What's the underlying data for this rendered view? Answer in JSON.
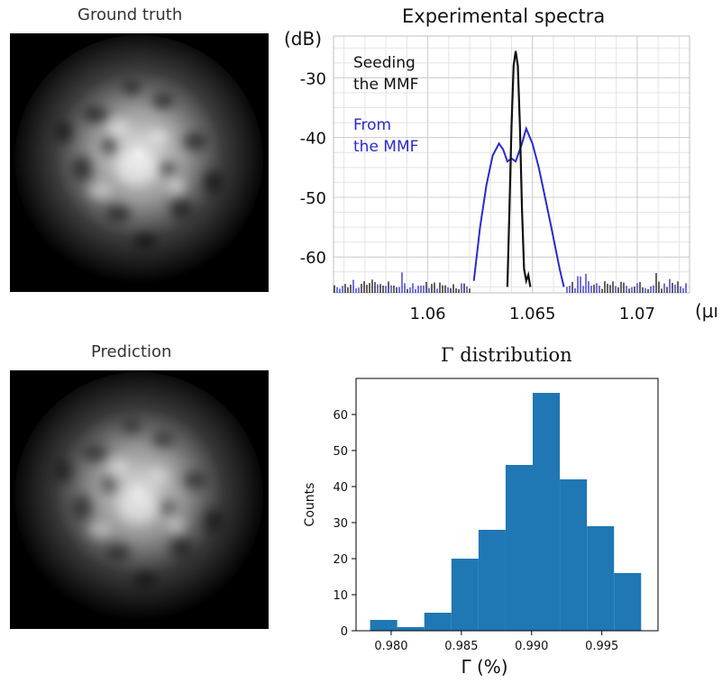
{
  "panels": {
    "ground_truth_title": "Ground truth",
    "prediction_title": "Prediction"
  },
  "chart_data": [
    {
      "type": "line",
      "title": "Experimental spectra",
      "xlabel": "(μm)",
      "ylabel": "(dB)",
      "xlim": [
        1.0555,
        1.0725
      ],
      "ylim": [
        -66,
        -23
      ],
      "xticks": [
        "1.06",
        "1.065",
        "1.07"
      ],
      "xtick_values": [
        1.06,
        1.065,
        1.07
      ],
      "yticks": [
        "-30",
        "-40",
        "-50",
        "-60"
      ],
      "ytick_values": [
        -30,
        -40,
        -50,
        -60
      ],
      "grid": true,
      "annotations": [
        {
          "lines": [
            "Seeding",
            "the MMF"
          ],
          "color": "#111111"
        },
        {
          "lines": [
            "From",
            "the MMF"
          ],
          "color": "#2a2ad0"
        }
      ],
      "series": [
        {
          "color": "#111111",
          "x": [
            1.0638,
            1.0639,
            1.064,
            1.0641,
            1.0642,
            1.0643,
            1.0644,
            1.0645,
            1.0646,
            1.0647,
            1.0648,
            1.0649
          ],
          "y": [
            -65,
            -52,
            -38,
            -28,
            -25.5,
            -28,
            -38,
            -52,
            -62,
            -64,
            -63,
            -65
          ]
        },
        {
          "color": "#2a2ad0",
          "x": [
            1.0622,
            1.0625,
            1.0628,
            1.0631,
            1.0634,
            1.0636,
            1.0638,
            1.064,
            1.0642,
            1.0645,
            1.0647,
            1.065,
            1.0653,
            1.0656,
            1.0659,
            1.0663,
            1.0665
          ],
          "y": [
            -64,
            -55,
            -48,
            -43,
            -41,
            -42,
            -44,
            -43.5,
            -44,
            -41,
            -38.5,
            -41,
            -45,
            -50,
            -55,
            -62,
            -65
          ]
        }
      ]
    },
    {
      "type": "bar",
      "title": "Γ distribution",
      "xlabel": "Γ (%)",
      "ylabel": "Counts",
      "bin_edges": [
        0.9785,
        0.98043,
        0.98236,
        0.98429,
        0.98622,
        0.98815,
        0.99008,
        0.99201,
        0.99394,
        0.99587,
        0.9978
      ],
      "values": [
        3,
        1,
        5,
        20,
        28,
        46,
        66,
        42,
        29,
        16
      ],
      "xlim": [
        0.9775,
        0.999
      ],
      "ylim": [
        0,
        70
      ],
      "xticks": [
        "0.980",
        "0.985",
        "0.990",
        "0.995"
      ],
      "xtick_values": [
        0.98,
        0.985,
        0.99,
        0.995
      ],
      "yticks": [
        "0",
        "10",
        "20",
        "30",
        "40",
        "50",
        "60"
      ],
      "ytick_values": [
        0,
        10,
        20,
        30,
        40,
        50,
        60
      ],
      "bar_color": "#1f77b4"
    }
  ]
}
